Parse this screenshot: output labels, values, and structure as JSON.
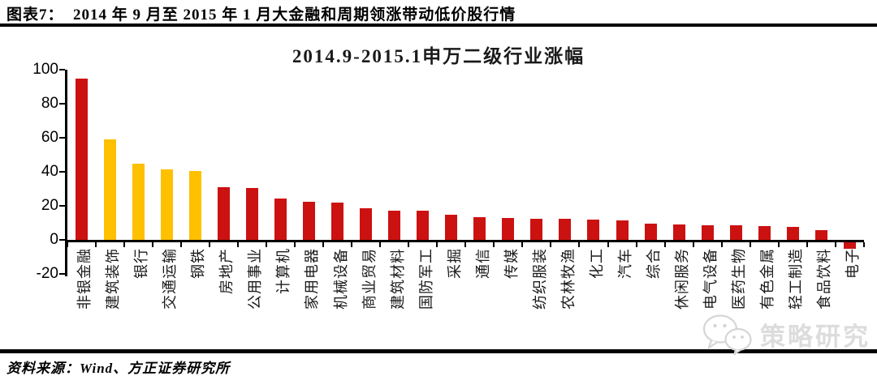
{
  "figure": {
    "caption": "图表7：  2014 年 9 月至 2015 年 1 月大金融和周期领涨带动低价股行情",
    "source": "资料来源：Wind、方正证券研究所",
    "watermark": "策略研究",
    "watermark_icon": "wechat-icon"
  },
  "chart_data": {
    "type": "bar",
    "title": "2014.9-2015.1申万二级行业涨幅",
    "categories": [
      "非银金融",
      "建筑装饰",
      "银行",
      "交通运输",
      "钢铁",
      "房地产",
      "公用事业",
      "计算机",
      "家用电器",
      "机械设备",
      "商业贸易",
      "建筑材料",
      "国防军工",
      "采掘",
      "通信",
      "传媒",
      "纺织服装",
      "农林牧渔",
      "化工",
      "汽车",
      "综合",
      "休闲服务",
      "电气设备",
      "医药生物",
      "有色金属",
      "轻工制造",
      "食品饮料",
      "电子"
    ],
    "values": [
      95,
      59,
      45,
      41.5,
      40.5,
      31,
      30.4,
      24.2,
      22.4,
      21.9,
      18.6,
      17.3,
      17,
      14.8,
      13.5,
      13,
      12.5,
      12.2,
      12,
      11.6,
      9.6,
      9,
      8.7,
      8.6,
      8,
      7.5,
      5.5,
      -4
    ],
    "bar_colors": [
      "red",
      "yellow",
      "yellow",
      "yellow",
      "yellow",
      "red",
      "red",
      "red",
      "red",
      "red",
      "red",
      "red",
      "red",
      "red",
      "red",
      "red",
      "red",
      "red",
      "red",
      "red",
      "red",
      "red",
      "red",
      "red",
      "red",
      "red",
      "red",
      "red"
    ],
    "palette": {
      "red": "#cc1111",
      "yellow": "#ffc000"
    },
    "xlabel": "",
    "ylabel": "",
    "ylim": [
      -20,
      100
    ],
    "yticks": [
      100,
      80,
      60,
      40,
      20,
      0,
      -20
    ],
    "grid": false,
    "legend": false
  }
}
